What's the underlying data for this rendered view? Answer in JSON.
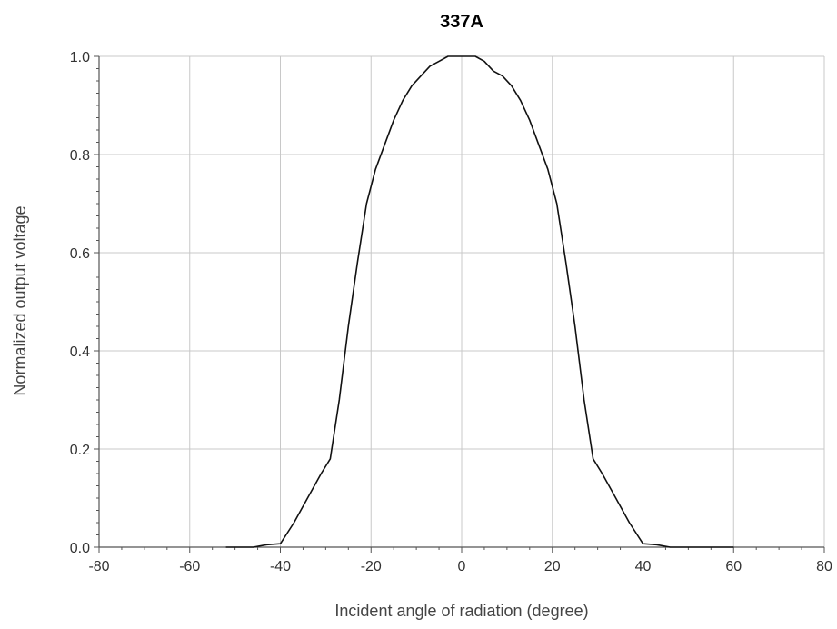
{
  "chart_data": {
    "type": "line",
    "title": "337A",
    "xlabel": "Incident angle of radiation (degree)",
    "ylabel": "Normalized output voltage",
    "xlim": [
      -80,
      80
    ],
    "ylim": [
      0,
      1.0
    ],
    "xticks": [
      -80,
      -60,
      -40,
      -20,
      0,
      20,
      40,
      60,
      80
    ],
    "yticks": [
      0.0,
      0.2,
      0.4,
      0.6,
      0.8,
      1.0
    ],
    "xtick_labels": [
      "-80",
      "-60",
      "-40",
      "-20",
      "0",
      "20",
      "40",
      "60",
      "80"
    ],
    "ytick_labels": [
      "0.0",
      "0.2",
      "0.4",
      "0.6",
      "0.8",
      "1.0"
    ],
    "grid": true,
    "series": [
      {
        "x": [
          -52,
          -46,
          -43,
          -40,
          -37,
          -34,
          -31,
          -29,
          -27,
          -25,
          -23,
          -21,
          -19,
          -17,
          -15,
          -13,
          -11,
          -9,
          -7,
          -5,
          -3,
          -1,
          1,
          3,
          5,
          7,
          9,
          11,
          13,
          15,
          17,
          19,
          21,
          23,
          25,
          27,
          29,
          31,
          34,
          37,
          40,
          43,
          46,
          54,
          57,
          60
        ],
        "y": [
          0.0,
          0.0,
          0.005,
          0.007,
          0.05,
          0.1,
          0.15,
          0.18,
          0.3,
          0.45,
          0.58,
          0.7,
          0.77,
          0.82,
          0.87,
          0.91,
          0.94,
          0.96,
          0.98,
          0.99,
          1.0,
          1.0,
          1.0,
          1.0,
          0.99,
          0.97,
          0.96,
          0.94,
          0.91,
          0.87,
          0.82,
          0.77,
          0.7,
          0.58,
          0.45,
          0.3,
          0.18,
          0.15,
          0.1,
          0.05,
          0.007,
          0.005,
          0.0,
          0.0,
          0.0,
          0.0
        ]
      }
    ]
  }
}
